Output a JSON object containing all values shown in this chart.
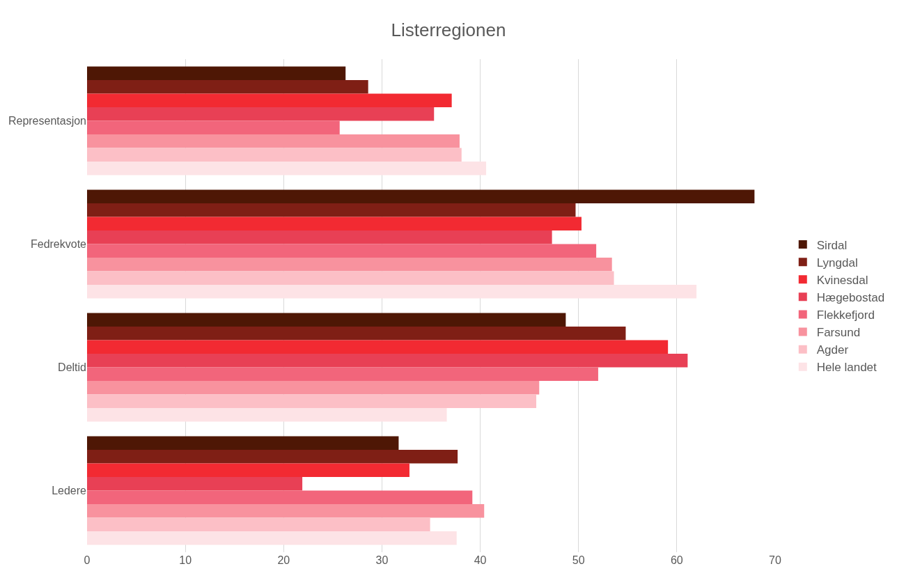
{
  "chart_data": {
    "type": "bar",
    "orientation": "horizontal",
    "title": "Listerregionen",
    "categories": [
      "Representasjon",
      "Fedrekvote",
      "Deltid",
      "Ledere"
    ],
    "series": [
      {
        "name": "Sirdal",
        "color": "#4e1705",
        "values": [
          26.3,
          67.9,
          48.7,
          31.7
        ]
      },
      {
        "name": "Lyngdal",
        "color": "#7f1f15",
        "values": [
          28.6,
          49.7,
          54.8,
          37.7
        ]
      },
      {
        "name": "Kvinesdal",
        "color": "#f22a32",
        "values": [
          37.1,
          50.3,
          59.1,
          32.8
        ]
      },
      {
        "name": "Hægebostad",
        "color": "#e84055",
        "values": [
          35.3,
          47.3,
          61.1,
          21.9
        ]
      },
      {
        "name": "Flekkefjord",
        "color": "#f2657b",
        "values": [
          25.7,
          51.8,
          52.0,
          39.2
        ]
      },
      {
        "name": "Farsund",
        "color": "#f8929e",
        "values": [
          37.9,
          53.4,
          46.0,
          40.4
        ]
      },
      {
        "name": "Agder",
        "color": "#fcbfc6",
        "values": [
          38.1,
          53.6,
          45.7,
          34.9
        ]
      },
      {
        "name": "Hele landet",
        "color": "#fde3e6",
        "values": [
          40.6,
          62.0,
          36.6,
          37.6
        ]
      }
    ],
    "xlim": [
      0,
      70
    ],
    "xticks": [
      0,
      10,
      20,
      30,
      40,
      50,
      60,
      70
    ],
    "grid": "x",
    "legend": "right"
  }
}
